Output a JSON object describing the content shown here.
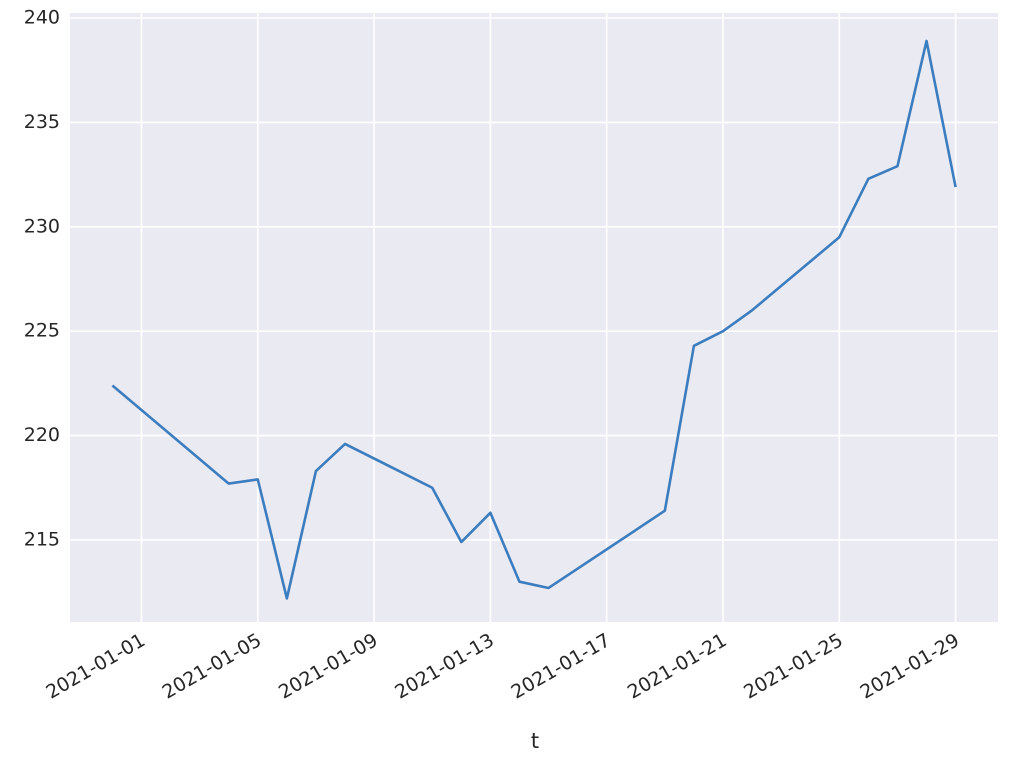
{
  "chart_data": {
    "type": "line",
    "x_label": "t",
    "x": [
      "2020-12-31",
      "2021-01-04",
      "2021-01-05",
      "2021-01-06",
      "2021-01-07",
      "2021-01-08",
      "2021-01-11",
      "2021-01-12",
      "2021-01-13",
      "2021-01-14",
      "2021-01-15",
      "2021-01-19",
      "2021-01-20",
      "2021-01-21",
      "2021-01-22",
      "2021-01-25",
      "2021-01-26",
      "2021-01-27",
      "2021-01-28",
      "2021-01-29"
    ],
    "series": [
      {
        "color": "#3b7dbf",
        "values": [
          222.4,
          217.7,
          217.9,
          212.2,
          218.3,
          219.6,
          217.5,
          214.9,
          216.3,
          213.0,
          212.7,
          216.4,
          224.3,
          225.0,
          226.0,
          229.5,
          232.3,
          232.9,
          238.9,
          231.9
        ]
      }
    ],
    "xlim": [
      "2020-12-29T13:00",
      "2021-01-30T11:00"
    ],
    "xticks": [
      "2021-01-01",
      "2021-01-05",
      "2021-01-09",
      "2021-01-13",
      "2021-01-17",
      "2021-01-21",
      "2021-01-25",
      "2021-01-29"
    ],
    "ylim": [
      211.07,
      240.24
    ],
    "yticks": [
      215,
      220,
      225,
      230,
      235,
      240
    ],
    "grid": true
  }
}
